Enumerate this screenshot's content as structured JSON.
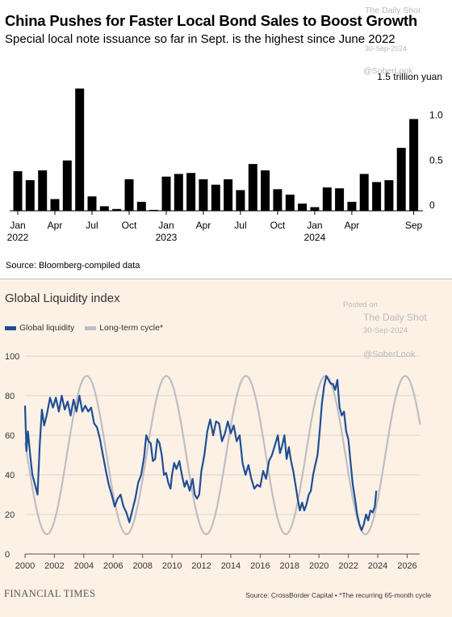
{
  "watermark": {
    "posted_on": "Posted on",
    "brand": "The Daily Shot",
    "date": "30-Sep-2024",
    "handle": "@SoberLook"
  },
  "top_chart": {
    "title": "China Pushes for Faster Local Bond Sales to Boost Growth",
    "subtitle": "Special local note issuance so far in Sept. is the highest since June 2022",
    "source": "Source: Bloomberg-compiled data",
    "colors": {
      "bar": "#000000"
    }
  },
  "bottom_chart": {
    "title": "Global Liquidity index",
    "legend": {
      "series1": "Global liquidity",
      "series2": "Long-term cycle*"
    },
    "brand": "FINANCIAL TIMES",
    "source": "Source: CrossBorder Capital • *The recurring 65-month cycle",
    "colors": {
      "liquidity": "#1f4e93",
      "cycle": "#bdbec4",
      "background": "#fdf1e6"
    }
  },
  "chart_data": [
    {
      "type": "bar",
      "title": "China Pushes for Faster Local Bond Sales to Boost Growth",
      "subtitle": "Special local note issuance so far in Sept. is the highest since June 2022",
      "unit_label": "1.5 trillion yuan",
      "y_ticks": [
        {
          "value": 1.5,
          "label": "1.5 trillion yuan"
        },
        {
          "value": 1.0,
          "label": "1.0"
        },
        {
          "value": 0.5,
          "label": "0.5"
        },
        {
          "value": 0,
          "label": "0"
        }
      ],
      "ylim": [
        0,
        1.5
      ],
      "categories": [
        "2022-01",
        "2022-02",
        "2022-03",
        "2022-04",
        "2022-05",
        "2022-06",
        "2022-07",
        "2022-08",
        "2022-09",
        "2022-10",
        "2022-11",
        "2022-12",
        "2023-01",
        "2023-02",
        "2023-03",
        "2023-04",
        "2023-05",
        "2023-06",
        "2023-07",
        "2023-08",
        "2023-09",
        "2023-10",
        "2023-11",
        "2023-12",
        "2024-01",
        "2024-02",
        "2024-03",
        "2024-04",
        "2024-05",
        "2024-06",
        "2024-07",
        "2024-08",
        "2024-09"
      ],
      "values": [
        0.44,
        0.34,
        0.45,
        0.13,
        0.56,
        1.36,
        0.16,
        0.05,
        0.02,
        0.35,
        0.1,
        0.01,
        0.38,
        0.41,
        0.42,
        0.35,
        0.29,
        0.35,
        0.23,
        0.52,
        0.45,
        0.24,
        0.18,
        0.08,
        0.04,
        0.26,
        0.25,
        0.1,
        0.41,
        0.32,
        0.34,
        0.7,
        1.02
      ],
      "x_ticks": [
        {
          "index": 0,
          "label": "Jan",
          "year": "2022"
        },
        {
          "index": 3,
          "label": "Apr"
        },
        {
          "index": 6,
          "label": "Jul"
        },
        {
          "index": 9,
          "label": "Oct"
        },
        {
          "index": 12,
          "label": "Jan",
          "year": "2023"
        },
        {
          "index": 15,
          "label": "Apr"
        },
        {
          "index": 18,
          "label": "Jul"
        },
        {
          "index": 21,
          "label": "Oct"
        },
        {
          "index": 24,
          "label": "Jan",
          "year": "2024"
        },
        {
          "index": 27,
          "label": "Apr"
        },
        {
          "index": 32,
          "label": "Sep"
        }
      ],
      "grid": false
    },
    {
      "type": "line",
      "title": "Global Liquidity index",
      "xlim": [
        2000,
        2027.5
      ],
      "ylim": [
        0,
        100
      ],
      "x_ticks": [
        2000,
        2002,
        2004,
        2006,
        2008,
        2010,
        2012,
        2014,
        2016,
        2018,
        2020,
        2022,
        2024,
        2026
      ],
      "y_ticks": [
        0,
        20,
        40,
        60,
        80,
        100
      ],
      "grid": true,
      "legend_position": "top-left",
      "series": [
        {
          "name": "Global liquidity",
          "color": "#1f4e93",
          "points": [
            [
              2000.0,
              75
            ],
            [
              2000.1,
              52
            ],
            [
              2000.2,
              62
            ],
            [
              2000.35,
              50
            ],
            [
              2000.5,
              40
            ],
            [
              2000.65,
              36
            ],
            [
              2000.85,
              30
            ],
            [
              2001.0,
              55
            ],
            [
              2001.15,
              73
            ],
            [
              2001.3,
              65
            ],
            [
              2001.5,
              71
            ],
            [
              2001.7,
              79
            ],
            [
              2001.9,
              74
            ],
            [
              2002.1,
              79
            ],
            [
              2002.3,
              72
            ],
            [
              2002.5,
              80
            ],
            [
              2002.7,
              73
            ],
            [
              2002.9,
              77
            ],
            [
              2003.1,
              70
            ],
            [
              2003.3,
              78
            ],
            [
              2003.5,
              72
            ],
            [
              2003.7,
              80
            ],
            [
              2003.9,
              72
            ],
            [
              2004.1,
              75
            ],
            [
              2004.3,
              72
            ],
            [
              2004.5,
              74
            ],
            [
              2004.7,
              66
            ],
            [
              2004.9,
              64
            ],
            [
              2005.1,
              58
            ],
            [
              2005.3,
              50
            ],
            [
              2005.5,
              42
            ],
            [
              2005.7,
              35
            ],
            [
              2005.9,
              30
            ],
            [
              2006.1,
              24
            ],
            [
              2006.3,
              28
            ],
            [
              2006.5,
              30
            ],
            [
              2006.7,
              24
            ],
            [
              2006.9,
              21
            ],
            [
              2007.1,
              16
            ],
            [
              2007.3,
              22
            ],
            [
              2007.5,
              28
            ],
            [
              2007.7,
              36
            ],
            [
              2007.9,
              40
            ],
            [
              2008.1,
              49
            ],
            [
              2008.25,
              60
            ],
            [
              2008.4,
              57
            ],
            [
              2008.55,
              56
            ],
            [
              2008.7,
              47
            ],
            [
              2008.85,
              48
            ],
            [
              2009.0,
              58
            ],
            [
              2009.15,
              56
            ],
            [
              2009.3,
              50
            ],
            [
              2009.45,
              40
            ],
            [
              2009.6,
              41
            ],
            [
              2009.75,
              36
            ],
            [
              2009.9,
              33
            ],
            [
              2010.0,
              40
            ],
            [
              2010.15,
              46
            ],
            [
              2010.3,
              43
            ],
            [
              2010.5,
              47
            ],
            [
              2010.7,
              39
            ],
            [
              2010.85,
              34
            ],
            [
              2011.0,
              37
            ],
            [
              2011.2,
              32
            ],
            [
              2011.4,
              38
            ],
            [
              2011.55,
              30
            ],
            [
              2011.7,
              28
            ],
            [
              2011.85,
              30
            ],
            [
              2012.0,
              42
            ],
            [
              2012.2,
              50
            ],
            [
              2012.4,
              62
            ],
            [
              2012.6,
              68
            ],
            [
              2012.8,
              60
            ],
            [
              2013.0,
              67
            ],
            [
              2013.2,
              66
            ],
            [
              2013.4,
              57
            ],
            [
              2013.6,
              61
            ],
            [
              2013.8,
              67
            ],
            [
              2014.0,
              61
            ],
            [
              2014.2,
              65
            ],
            [
              2014.4,
              57
            ],
            [
              2014.6,
              60
            ],
            [
              2014.8,
              46
            ],
            [
              2015.0,
              40
            ],
            [
              2015.2,
              45
            ],
            [
              2015.4,
              38
            ],
            [
              2015.6,
              33
            ],
            [
              2015.8,
              35
            ],
            [
              2016.0,
              34
            ],
            [
              2016.2,
              42
            ],
            [
              2016.4,
              38
            ],
            [
              2016.6,
              47
            ],
            [
              2016.8,
              50
            ],
            [
              2017.0,
              55
            ],
            [
              2017.2,
              60
            ],
            [
              2017.35,
              51
            ],
            [
              2017.5,
              55
            ],
            [
              2017.65,
              60
            ],
            [
              2017.8,
              48
            ],
            [
              2017.95,
              54
            ],
            [
              2018.1,
              47
            ],
            [
              2018.25,
              42
            ],
            [
              2018.4,
              35
            ],
            [
              2018.55,
              28
            ],
            [
              2018.7,
              22
            ],
            [
              2018.85,
              26
            ],
            [
              2019.0,
              22
            ],
            [
              2019.15,
              25
            ],
            [
              2019.3,
              30
            ],
            [
              2019.45,
              32
            ],
            [
              2019.6,
              40
            ],
            [
              2019.75,
              45
            ],
            [
              2019.9,
              50
            ],
            [
              2020.05,
              62
            ],
            [
              2020.2,
              76
            ],
            [
              2020.35,
              85
            ],
            [
              2020.5,
              90
            ],
            [
              2020.65,
              88
            ],
            [
              2020.8,
              86
            ],
            [
              2020.95,
              86
            ],
            [
              2021.1,
              83
            ],
            [
              2021.25,
              88
            ],
            [
              2021.4,
              74
            ],
            [
              2021.55,
              70
            ],
            [
              2021.7,
              72
            ],
            [
              2021.85,
              62
            ],
            [
              2022.0,
              58
            ],
            [
              2022.15,
              46
            ],
            [
              2022.3,
              35
            ],
            [
              2022.45,
              28
            ],
            [
              2022.6,
              20
            ],
            [
              2022.75,
              15
            ],
            [
              2022.9,
              12
            ],
            [
              2023.05,
              15
            ],
            [
              2023.2,
              20
            ],
            [
              2023.35,
              17
            ],
            [
              2023.5,
              22
            ],
            [
              2023.65,
              21
            ],
            [
              2023.8,
              24
            ],
            [
              2023.9,
              32
            ]
          ]
        },
        {
          "name": "Long-term cycle*",
          "color": "#bdbec4",
          "cycle": {
            "period_years": 5.4167,
            "min": 10,
            "max": 90,
            "peak_at": 2004.2,
            "xlim": [
              2000,
              2026.9
            ]
          }
        }
      ]
    }
  ]
}
